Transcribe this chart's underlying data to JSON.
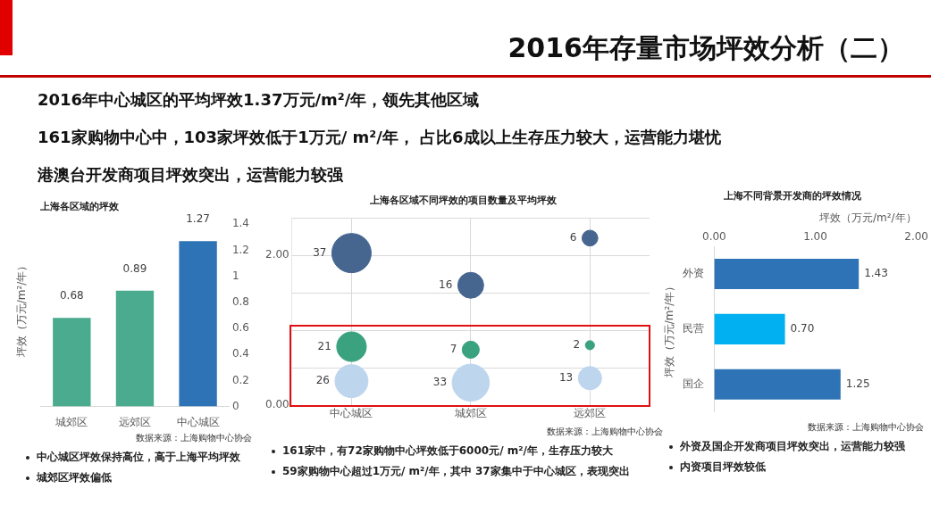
{
  "chart_data": [
    {
      "type": "other",
      "title": "2016年存量市场坪效分析（二）",
      "annotations": [
        "2016年中心城区的平均坪效1.37万元/m²/年，领先其他区域",
        "161家购物中心中，103家坪效低于1万元/ m²/年， 占比6成以上生存压力较大，运营能力堪忧",
        "港澳台开发商项目坪效突出，运营能力较强"
      ]
    },
    {
      "type": "bar",
      "title": "上海各区域的坪效",
      "ylabel": "坪效（万元/m²/年）",
      "categories": [
        "城郊区",
        "远郊区",
        "中心城区"
      ],
      "values": [
        0.68,
        0.89,
        1.27
      ],
      "colors": [
        "#4aab8e",
        "#4aab8e",
        "#2e73b5"
      ],
      "ylim": [
        0,
        1.4
      ],
      "yticks": [
        0,
        0.2,
        0.4,
        0.6,
        0.8,
        1,
        1.2,
        1.4
      ],
      "data_labels": true,
      "annotations": [
        "数据来源：上海购物中心协会",
        "中心城区坪效保持高位，高于上海平均坪效",
        "城郊区坪效偏低"
      ]
    },
    {
      "type": "bubble",
      "title": "上海各区域不同坪效的项目数量及平均坪效",
      "categories": [
        "中心城区",
        "城郊区",
        "远郊区"
      ],
      "ylim": [
        0,
        2.5
      ],
      "yticks": [
        {
          "value": 0,
          "label": "0.00"
        },
        {
          "value": 0.5,
          "label": null
        },
        {
          "value": 1,
          "label": null
        },
        {
          "value": 1.5,
          "label": null
        },
        {
          "value": 2,
          "label": "2.00"
        },
        {
          "value": 2.5,
          "label": null
        }
      ],
      "grid": true,
      "series": [
        {
          "color": "#466690",
          "values": [
            2.03,
            1.6,
            2.23
          ],
          "sizes": [
            37,
            16,
            6
          ],
          "value_labels": [
            "37",
            "16",
            "6"
          ]
        },
        {
          "color": "#3ba27f",
          "values": [
            0.78,
            0.74,
            0.8
          ],
          "sizes": [
            21,
            7,
            2
          ],
          "value_labels": [
            "21",
            "7",
            "2"
          ]
        },
        {
          "color": "#bdd6ee",
          "values": [
            0.32,
            0.3,
            0.36
          ],
          "sizes": [
            26,
            33,
            13
          ],
          "value_labels": [
            "26",
            "33",
            "13"
          ]
        }
      ],
      "annotations": [
        "数据来源：上海购物中心协会",
        "161家中，有72家购物中心坪效低于6000元/ m²/年，生存压力较大",
        "59家购物中心超过1万元/ m²/年，其中 37家集中于中心城区，表现突出"
      ]
    },
    {
      "type": "bar",
      "orientation": "horizontal",
      "title": "上海不同背景开发商的坪效情况",
      "xlabel": "坪效（万元/m²/年）",
      "ylabel": "坪效（万元/m²/年）",
      "categories": [
        "外资",
        "民营",
        "国企"
      ],
      "values": [
        1.43,
        0.7,
        1.25
      ],
      "colors": [
        "#2e73b5",
        "#00b0f0",
        "#2e73b5"
      ],
      "xlim": [
        0,
        2
      ],
      "xticks": [
        {
          "value": 0,
          "label": "0.00"
        },
        {
          "value": 1,
          "label": "1.00"
        },
        {
          "value": 2,
          "label": "2.00"
        }
      ],
      "value_labels": [
        "1.43",
        "0.70",
        "1.25"
      ],
      "annotations": [
        "数据来源：上海购物中心协会",
        "外资及国企开发商项目坪效突出，运营能力较强",
        "内资项目坪效较低"
      ]
    }
  ]
}
